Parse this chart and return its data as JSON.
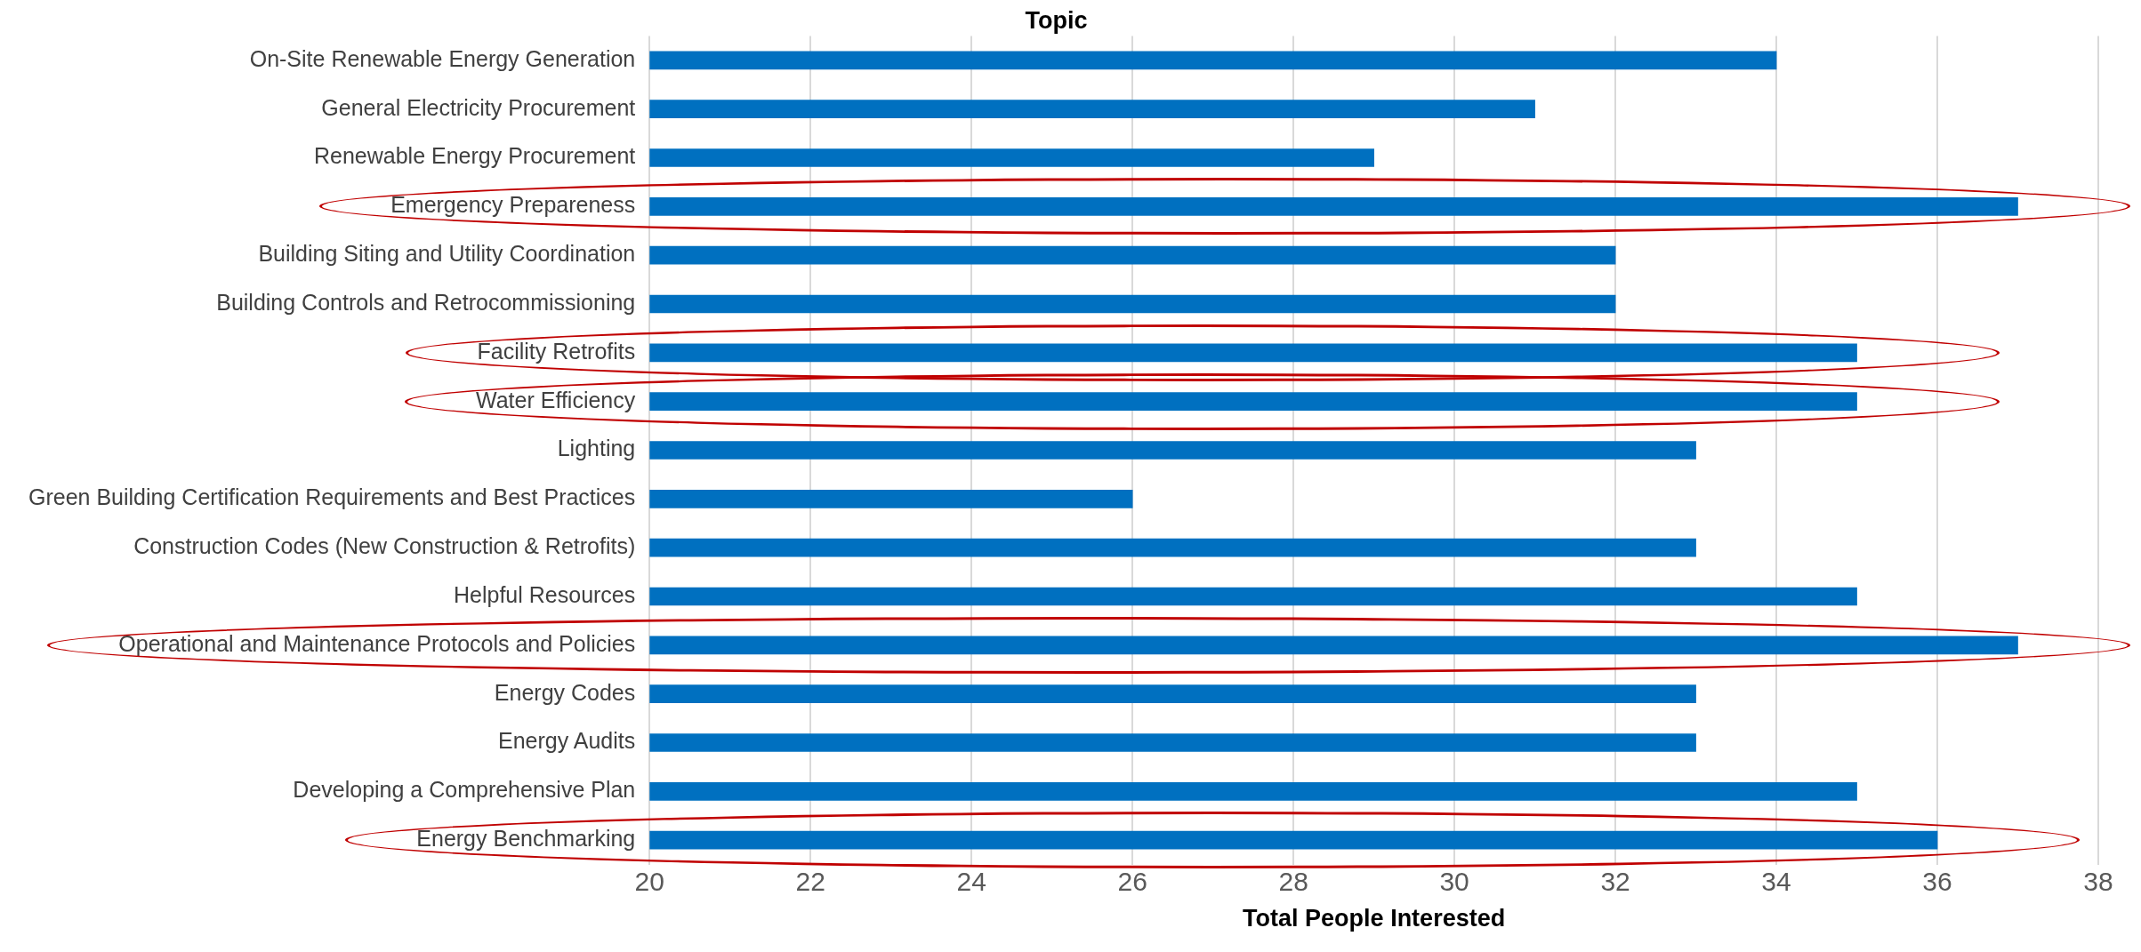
{
  "chart_data": {
    "type": "bar",
    "orientation": "horizontal",
    "title": "Topic",
    "xlabel": "Total People Interested",
    "categories": [
      "On-Site Renewable Energy Generation",
      "General Electricity Procurement",
      "Renewable Energy Procurement",
      "Emergency Prepareness",
      "Building Siting and Utility Coordination",
      "Building Controls and Retrocommissioning",
      "Facility Retrofits",
      "Water Efficiency",
      "Lighting",
      "Green Building Certification Requirements and Best Practices",
      "Construction Codes (New Construction & Retrofits)",
      "Helpful Resources",
      "Operational and Maintenance Protocols and Policies",
      "Energy Codes",
      "Energy Audits",
      "Developing a Comprehensive Plan",
      "Energy Benchmarking"
    ],
    "values": [
      34,
      31,
      29,
      37,
      32,
      32,
      35,
      35,
      33,
      26,
      33,
      35,
      37,
      33,
      33,
      35,
      36
    ],
    "color": "#0070c0",
    "xlim": [
      20,
      38
    ],
    "xticks": [
      20,
      22,
      24,
      26,
      28,
      30,
      32,
      34,
      36,
      38
    ],
    "grid": "x",
    "legend": false
  }
}
